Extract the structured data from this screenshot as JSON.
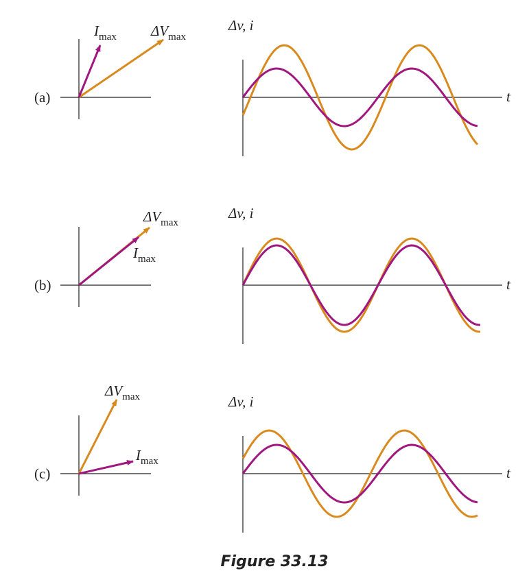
{
  "panels": [
    {
      "label": "(a)",
      "current": {
        "symbol": "I",
        "subscript": "max"
      },
      "voltage": {
        "symbol": "ΔV",
        "subscript": "max"
      },
      "axis_label": "Δv, i",
      "time_label": "t"
    },
    {
      "label": "(b)",
      "current": {
        "symbol": "I",
        "subscript": "max"
      },
      "voltage": {
        "symbol": "ΔV",
        "subscript": "max"
      },
      "axis_label": "Δv, i",
      "time_label": "t"
    },
    {
      "label": "(c)",
      "current": {
        "symbol": "I",
        "subscript": "max"
      },
      "voltage": {
        "symbol": "ΔV",
        "subscript": "max"
      },
      "axis_label": "Δv, i",
      "time_label": "t"
    }
  ],
  "caption": "Figure 33.13"
}
